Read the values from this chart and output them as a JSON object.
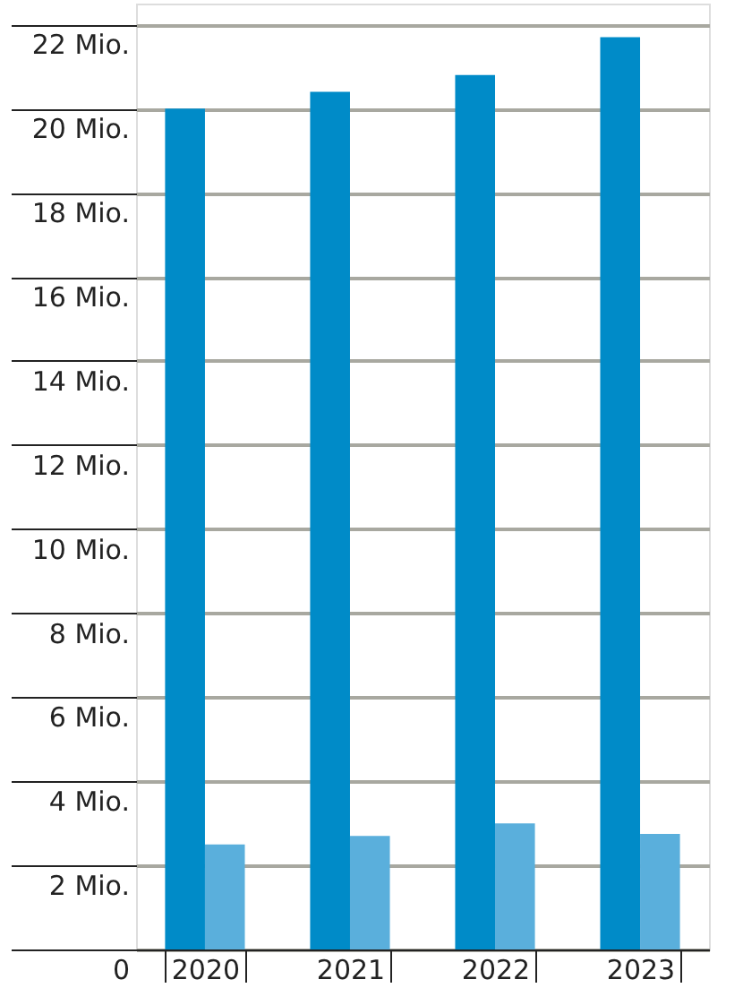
{
  "chart_data": {
    "type": "bar",
    "categories": [
      "2020",
      "2021",
      "2022",
      "2023"
    ],
    "series": [
      {
        "color": "#008bc8",
        "values": [
          20.0,
          20.4,
          20.8,
          21.7
        ]
      },
      {
        "color": "#5aafdc",
        "values": [
          2.5,
          2.7,
          3.0,
          2.75
        ]
      }
    ],
    "ylim": [
      0,
      22.5
    ],
    "yticks": [
      {
        "value": 0,
        "label": "0"
      },
      {
        "value": 2,
        "label": "2 Mio."
      },
      {
        "value": 4,
        "label": "4 Mio."
      },
      {
        "value": 6,
        "label": "6 Mio."
      },
      {
        "value": 8,
        "label": "8 Mio."
      },
      {
        "value": 10,
        "label": "10 Mio."
      },
      {
        "value": 12,
        "label": "12 Mio."
      },
      {
        "value": 14,
        "label": "14 Mio."
      },
      {
        "value": 16,
        "label": "16 Mio."
      },
      {
        "value": 18,
        "label": "18 Mio."
      },
      {
        "value": 20,
        "label": "20 Mio."
      },
      {
        "value": 22,
        "label": "22 Mio."
      }
    ],
    "grid": "y",
    "legend": false
  }
}
